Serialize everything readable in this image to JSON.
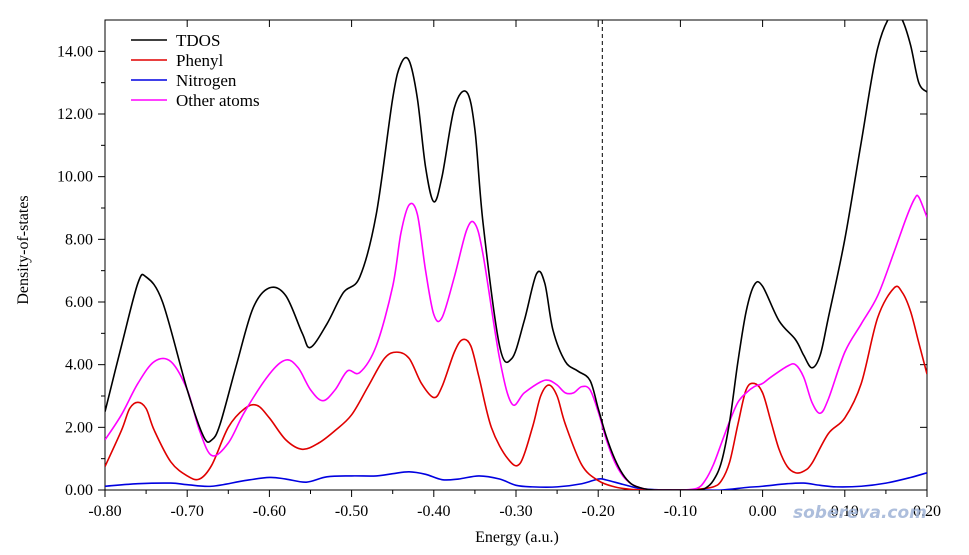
{
  "chart_data": {
    "type": "line",
    "title": "",
    "xlabel": "Energy (a.u.)",
    "ylabel": "Density-of-states",
    "xlim": [
      -0.8,
      0.2
    ],
    "ylim": [
      0.0,
      15.0
    ],
    "xticks": [
      -0.8,
      -0.7,
      -0.6,
      -0.5,
      -0.4,
      -0.3,
      -0.2,
      -0.1,
      0.0,
      0.1,
      0.2
    ],
    "xtick_labels": [
      "-0.80",
      "-0.70",
      "-0.60",
      "-0.50",
      "-0.40",
      "-0.30",
      "-0.20",
      "-0.10",
      "0.00",
      "0.10",
      "0.20"
    ],
    "yticks": [
      0,
      2,
      4,
      6,
      8,
      10,
      12,
      14
    ],
    "ytick_labels": [
      "0.00",
      "2.00",
      "4.00",
      "6.00",
      "8.00",
      "10.00",
      "12.00",
      "14.00"
    ],
    "grid": false,
    "legend_position": "top-left",
    "vline": -0.195,
    "watermark": "sobereva.com",
    "series": [
      {
        "name": "TDOS",
        "color": "#000000",
        "x": [
          -0.8,
          -0.78,
          -0.76,
          -0.75,
          -0.73,
          -0.7,
          -0.68,
          -0.67,
          -0.66,
          -0.64,
          -0.62,
          -0.6,
          -0.58,
          -0.56,
          -0.55,
          -0.53,
          -0.51,
          -0.49,
          -0.47,
          -0.45,
          -0.44,
          -0.43,
          -0.42,
          -0.41,
          -0.4,
          -0.39,
          -0.375,
          -0.36,
          -0.35,
          -0.34,
          -0.32,
          -0.305,
          -0.29,
          -0.275,
          -0.265,
          -0.255,
          -0.24,
          -0.225,
          -0.21,
          -0.2,
          -0.19,
          -0.18,
          -0.17,
          -0.16,
          -0.15,
          -0.14,
          -0.13,
          -0.12,
          -0.1,
          -0.08,
          -0.07,
          -0.06,
          -0.05,
          -0.04,
          -0.03,
          -0.02,
          -0.01,
          0.0,
          0.02,
          0.04,
          0.05,
          0.06,
          0.07,
          0.08,
          0.1,
          0.12,
          0.14,
          0.16,
          0.17,
          0.18,
          0.19,
          0.2
        ],
        "y": [
          2.5,
          4.6,
          6.6,
          6.8,
          6.0,
          3.2,
          1.7,
          1.6,
          2.1,
          4.0,
          5.8,
          6.45,
          6.2,
          5.0,
          4.55,
          5.3,
          6.3,
          6.8,
          8.8,
          12.5,
          13.6,
          13.7,
          12.5,
          10.3,
          9.2,
          10.0,
          12.2,
          12.7,
          11.5,
          8.5,
          4.6,
          4.2,
          5.4,
          6.9,
          6.6,
          5.1,
          4.1,
          3.8,
          3.5,
          2.6,
          1.7,
          1.0,
          0.5,
          0.2,
          0.08,
          0.02,
          0.0,
          0.0,
          0.0,
          0.0,
          0.05,
          0.3,
          0.9,
          2.2,
          4.1,
          5.7,
          6.55,
          6.5,
          5.4,
          4.8,
          4.3,
          3.9,
          4.3,
          5.5,
          8.0,
          11.1,
          14.1,
          15.3,
          15.0,
          14.2,
          13.0,
          12.7
        ]
      },
      {
        "name": "Phenyl",
        "color": "#e00000",
        "x": [
          -0.8,
          -0.78,
          -0.77,
          -0.76,
          -0.75,
          -0.74,
          -0.72,
          -0.7,
          -0.685,
          -0.67,
          -0.65,
          -0.63,
          -0.615,
          -0.6,
          -0.58,
          -0.56,
          -0.54,
          -0.52,
          -0.5,
          -0.48,
          -0.46,
          -0.445,
          -0.43,
          -0.415,
          -0.4,
          -0.39,
          -0.375,
          -0.365,
          -0.355,
          -0.345,
          -0.33,
          -0.31,
          -0.295,
          -0.28,
          -0.27,
          -0.26,
          -0.25,
          -0.24,
          -0.22,
          -0.2,
          -0.18,
          -0.16,
          -0.14,
          -0.12,
          -0.1,
          -0.08,
          -0.06,
          -0.05,
          -0.04,
          -0.03,
          -0.02,
          -0.01,
          0.0,
          0.01,
          0.02,
          0.03,
          0.04,
          0.05,
          0.06,
          0.08,
          0.1,
          0.12,
          0.14,
          0.16,
          0.17,
          0.18,
          0.19,
          0.2
        ],
        "y": [
          0.75,
          1.9,
          2.6,
          2.8,
          2.6,
          1.9,
          0.9,
          0.45,
          0.35,
          0.8,
          2.0,
          2.6,
          2.7,
          2.3,
          1.6,
          1.3,
          1.5,
          1.9,
          2.4,
          3.3,
          4.2,
          4.4,
          4.2,
          3.4,
          2.95,
          3.3,
          4.4,
          4.8,
          4.6,
          3.6,
          2.0,
          1.0,
          0.85,
          2.0,
          3.0,
          3.35,
          3.0,
          2.1,
          0.8,
          0.3,
          0.1,
          0.02,
          0.0,
          0.0,
          0.0,
          0.02,
          0.1,
          0.3,
          0.9,
          2.1,
          3.2,
          3.4,
          3.1,
          2.2,
          1.3,
          0.75,
          0.55,
          0.6,
          0.85,
          1.8,
          2.3,
          3.4,
          5.5,
          6.45,
          6.3,
          5.7,
          4.7,
          3.7
        ]
      },
      {
        "name": "Nitrogen",
        "color": "#0000e0",
        "x": [
          -0.8,
          -0.76,
          -0.72,
          -0.7,
          -0.67,
          -0.63,
          -0.6,
          -0.58,
          -0.555,
          -0.53,
          -0.5,
          -0.47,
          -0.45,
          -0.43,
          -0.41,
          -0.39,
          -0.37,
          -0.345,
          -0.32,
          -0.3,
          -0.28,
          -0.25,
          -0.22,
          -0.2,
          -0.19,
          -0.17,
          -0.15,
          -0.13,
          -0.11,
          -0.08,
          -0.05,
          -0.02,
          0.0,
          0.03,
          0.05,
          0.07,
          0.09,
          0.12,
          0.15,
          0.18,
          0.2
        ],
        "y": [
          0.12,
          0.2,
          0.22,
          0.17,
          0.12,
          0.3,
          0.4,
          0.35,
          0.25,
          0.42,
          0.45,
          0.45,
          0.52,
          0.58,
          0.5,
          0.33,
          0.35,
          0.45,
          0.35,
          0.15,
          0.1,
          0.1,
          0.2,
          0.35,
          0.32,
          0.18,
          0.05,
          0.01,
          0.0,
          0.0,
          0.0,
          0.08,
          0.12,
          0.2,
          0.22,
          0.15,
          0.1,
          0.12,
          0.22,
          0.4,
          0.55
        ]
      },
      {
        "name": "Other atoms",
        "color": "#ff00ff",
        "x": [
          -0.8,
          -0.78,
          -0.76,
          -0.74,
          -0.72,
          -0.7,
          -0.685,
          -0.67,
          -0.65,
          -0.63,
          -0.6,
          -0.58,
          -0.565,
          -0.55,
          -0.535,
          -0.52,
          -0.505,
          -0.49,
          -0.47,
          -0.45,
          -0.44,
          -0.43,
          -0.42,
          -0.41,
          -0.4,
          -0.39,
          -0.375,
          -0.36,
          -0.35,
          -0.34,
          -0.32,
          -0.305,
          -0.29,
          -0.27,
          -0.26,
          -0.25,
          -0.24,
          -0.23,
          -0.22,
          -0.21,
          -0.2,
          -0.19,
          -0.18,
          -0.17,
          -0.16,
          -0.15,
          -0.14,
          -0.13,
          -0.12,
          -0.1,
          -0.08,
          -0.07,
          -0.06,
          -0.05,
          -0.04,
          -0.03,
          -0.02,
          -0.01,
          0.0,
          0.01,
          0.03,
          0.04,
          0.05,
          0.06,
          0.07,
          0.08,
          0.1,
          0.12,
          0.14,
          0.16,
          0.175,
          0.185,
          0.19,
          0.2
        ],
        "y": [
          1.6,
          2.4,
          3.4,
          4.1,
          4.1,
          3.2,
          1.9,
          1.1,
          1.5,
          2.5,
          3.7,
          4.15,
          3.9,
          3.2,
          2.85,
          3.2,
          3.8,
          3.75,
          4.6,
          6.5,
          8.2,
          9.1,
          8.8,
          7.0,
          5.6,
          5.5,
          6.8,
          8.3,
          8.5,
          7.5,
          4.2,
          2.75,
          3.1,
          3.45,
          3.5,
          3.35,
          3.1,
          3.1,
          3.3,
          3.2,
          2.5,
          1.6,
          0.9,
          0.45,
          0.2,
          0.08,
          0.02,
          0.0,
          0.0,
          0.0,
          0.05,
          0.3,
          0.8,
          1.5,
          2.2,
          2.8,
          3.1,
          3.3,
          3.4,
          3.6,
          3.95,
          4.0,
          3.6,
          2.8,
          2.45,
          2.9,
          4.4,
          5.3,
          6.2,
          7.6,
          8.7,
          9.3,
          9.35,
          8.7
        ]
      }
    ]
  }
}
